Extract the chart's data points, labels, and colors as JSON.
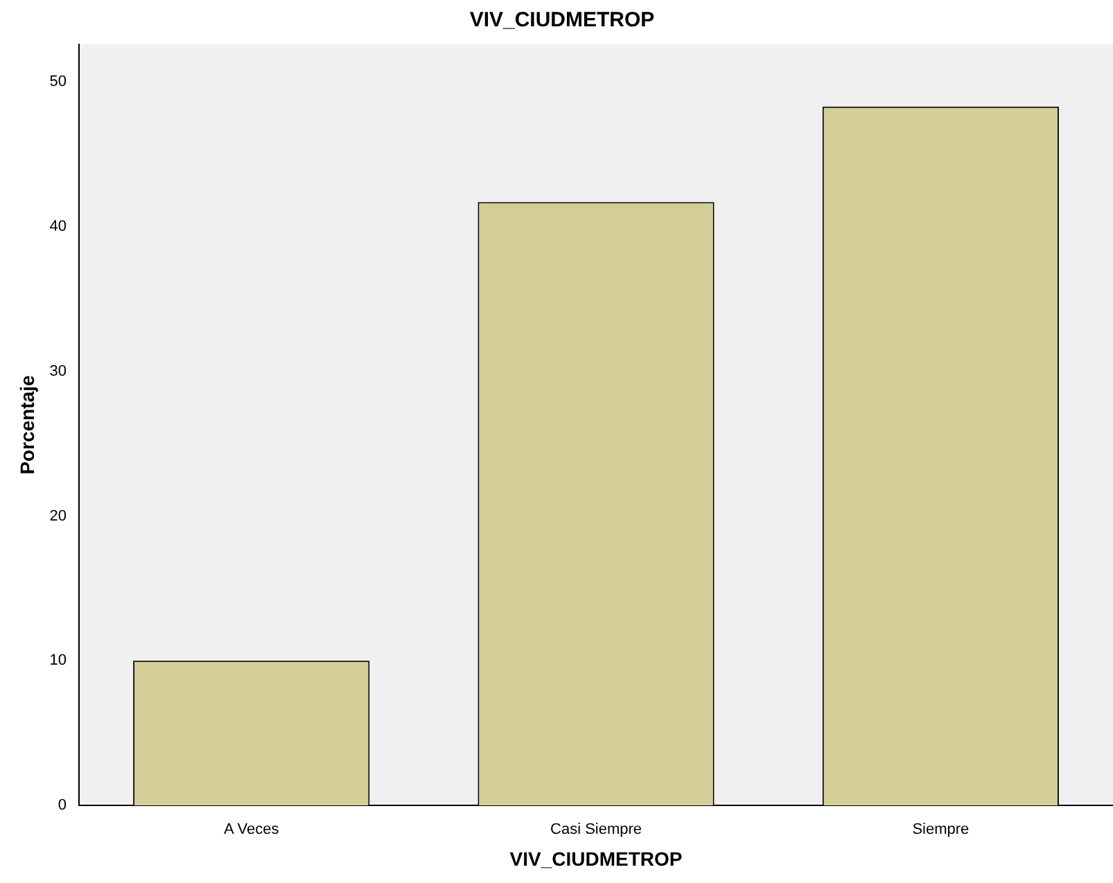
{
  "chart_data": {
    "type": "bar",
    "title": "VIV_CIUDMETROP",
    "xlabel": "VIV_CIUDMETROP",
    "ylabel": "Porcentaje",
    "categories": [
      "A Veces",
      "Casi Siempre",
      "Siempre"
    ],
    "values": [
      10.0,
      41.7,
      48.3
    ],
    "color": "#d3ce97",
    "ylim": [
      0,
      52.6
    ],
    "yticks": [
      0,
      10,
      20,
      30,
      40,
      50
    ],
    "grid": false
  }
}
